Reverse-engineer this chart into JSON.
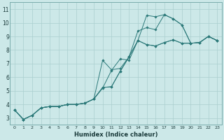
{
  "xlabel": "Humidex (Indice chaleur)",
  "background_color": "#cce8e8",
  "grid_color": "#aacfcf",
  "line_color": "#2d7a7a",
  "xlim": [
    -0.5,
    23.5
  ],
  "ylim": [
    2.5,
    11.5
  ],
  "yticks": [
    3,
    4,
    5,
    6,
    7,
    8,
    9,
    10,
    11
  ],
  "xticks": [
    0,
    1,
    2,
    3,
    4,
    5,
    6,
    7,
    8,
    9,
    10,
    11,
    12,
    13,
    14,
    15,
    16,
    17,
    18,
    19,
    20,
    21,
    22,
    23
  ],
  "series": [
    {
      "x": [
        0,
        1,
        2,
        3,
        4,
        5,
        6,
        7,
        8,
        9,
        10,
        11,
        12,
        13,
        14,
        15,
        16,
        17,
        18,
        19,
        20,
        21,
        22,
        23
      ],
      "y": [
        3.6,
        2.9,
        3.2,
        3.75,
        3.85,
        3.85,
        4.0,
        4.0,
        4.1,
        4.4,
        5.2,
        6.5,
        7.35,
        7.25,
        8.7,
        10.55,
        10.45,
        10.6,
        10.3,
        9.85,
        8.5,
        8.55,
        9.0,
        8.7
      ]
    },
    {
      "x": [
        0,
        1,
        2,
        3,
        4,
        5,
        6,
        7,
        8,
        9,
        10,
        11,
        12,
        13,
        14,
        15,
        16,
        17,
        18,
        19,
        20,
        21,
        22,
        23
      ],
      "y": [
        3.6,
        2.9,
        3.2,
        3.75,
        3.85,
        3.85,
        4.0,
        4.0,
        4.1,
        4.4,
        7.25,
        6.55,
        6.65,
        7.5,
        9.4,
        9.65,
        9.5,
        10.6,
        10.3,
        9.85,
        8.5,
        8.55,
        9.0,
        8.7
      ]
    },
    {
      "x": [
        0,
        1,
        2,
        3,
        4,
        5,
        6,
        7,
        8,
        9,
        10,
        11,
        12,
        13,
        14,
        15,
        16,
        17,
        18,
        19,
        20,
        21,
        22,
        23
      ],
      "y": [
        3.6,
        2.9,
        3.2,
        3.75,
        3.85,
        3.85,
        4.0,
        4.0,
        4.1,
        4.4,
        5.25,
        5.3,
        6.45,
        7.5,
        8.7,
        8.4,
        8.3,
        8.55,
        8.75,
        8.5,
        8.5,
        8.55,
        9.0,
        8.7
      ]
    },
    {
      "x": [
        0,
        1,
        2,
        3,
        4,
        5,
        6,
        7,
        8,
        9,
        10,
        11,
        12,
        13,
        14,
        15,
        16,
        17,
        18,
        19,
        20,
        21,
        22,
        23
      ],
      "y": [
        3.6,
        2.9,
        3.2,
        3.75,
        3.85,
        3.85,
        4.0,
        4.0,
        4.1,
        4.4,
        5.25,
        5.3,
        6.45,
        7.5,
        8.7,
        8.4,
        8.3,
        8.55,
        8.75,
        8.5,
        8.5,
        8.55,
        9.0,
        8.7
      ]
    }
  ]
}
